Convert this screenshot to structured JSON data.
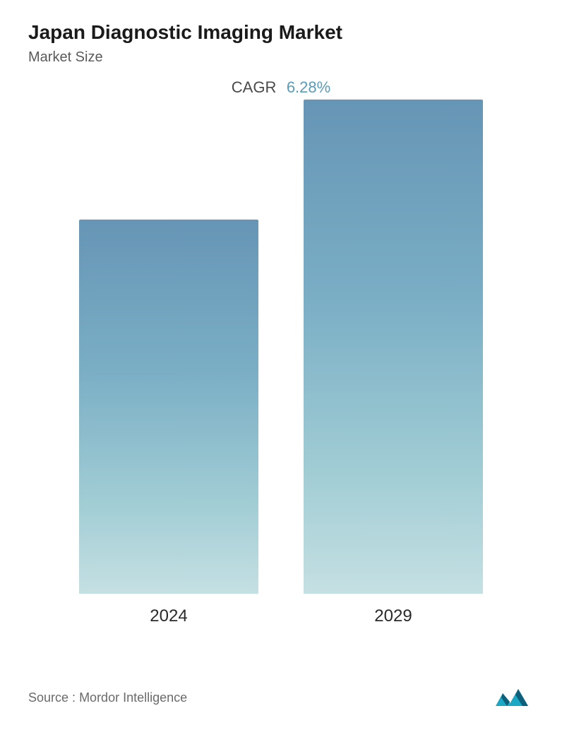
{
  "header": {
    "title": "Japan Diagnostic Imaging Market",
    "subtitle": "Market Size"
  },
  "cagr": {
    "label": "CAGR",
    "value": "6.28%",
    "value_color": "#5a9bb8"
  },
  "chart": {
    "type": "bar",
    "categories": [
      "2024",
      "2029"
    ],
    "values": [
      530,
      700
    ],
    "max_height": 700,
    "bar_gradient_top": "#6695b5",
    "bar_gradient_mid1": "#7aaec5",
    "bar_gradient_mid2": "#a0ccd4",
    "bar_gradient_bottom": "#c5e0e3",
    "background_color": "#ffffff",
    "label_fontsize": 24,
    "label_color": "#2a2a2a",
    "bar_width_pct": 40
  },
  "footer": {
    "source_label": "Source :",
    "source_name": "Mordor Intelligence",
    "logo_color_primary": "#1ba8c4",
    "logo_color_secondary": "#0d5f7a"
  }
}
